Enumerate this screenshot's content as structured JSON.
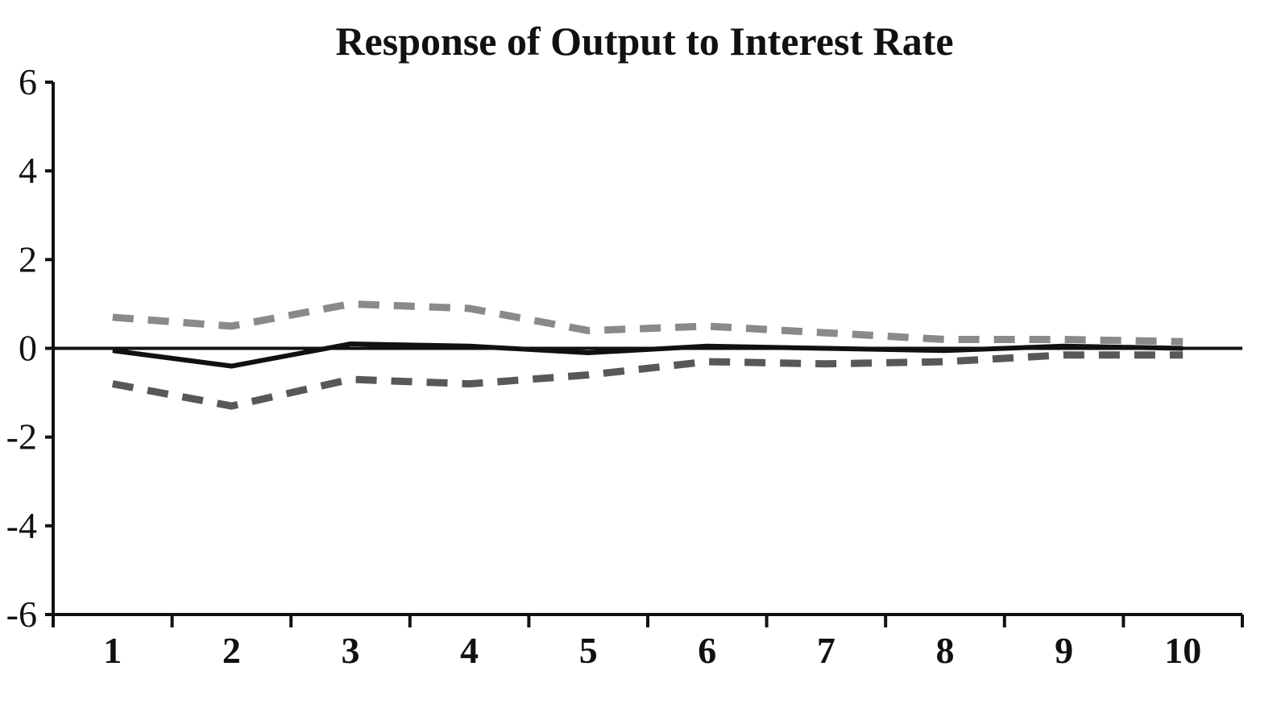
{
  "chart_data": {
    "type": "line",
    "title": "Response of Output to Interest Rate",
    "xlabel": "",
    "ylabel": "",
    "x": [
      1,
      2,
      3,
      4,
      5,
      6,
      7,
      8,
      9,
      10
    ],
    "xticks": [
      "1",
      "2",
      "3",
      "4",
      "5",
      "6",
      "7",
      "8",
      "9",
      "10"
    ],
    "yticks": [
      "6",
      "4",
      "2",
      "0",
      "-2",
      "-4",
      "-6"
    ],
    "ylim": [
      -6,
      6
    ],
    "grid": false,
    "legend": "none",
    "series": [
      {
        "values": [
          0.7,
          0.5,
          1.0,
          0.9,
          0.4,
          0.5,
          0.35,
          0.2,
          0.2,
          0.15
        ],
        "color": "#8a8a8a",
        "style": "dashed"
      },
      {
        "values": [
          -0.05,
          -0.4,
          0.1,
          0.05,
          -0.1,
          0.05,
          0.0,
          -0.05,
          0.05,
          0.0
        ],
        "color": "#111111",
        "style": "solid"
      },
      {
        "values": [
          -0.8,
          -1.3,
          -0.7,
          -0.8,
          -0.6,
          -0.3,
          -0.35,
          -0.3,
          -0.15,
          -0.15
        ],
        "color": "#585858",
        "style": "dashed"
      }
    ]
  }
}
